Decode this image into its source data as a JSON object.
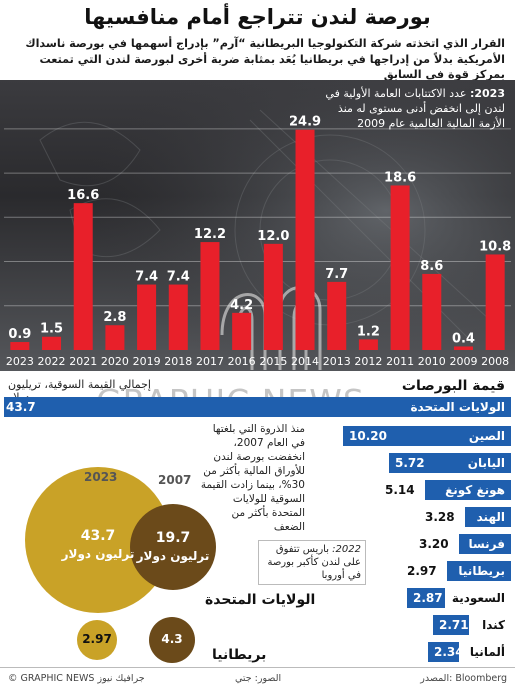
{
  "header": {
    "title": "بورصة لندن تتراجع أمام منافسيها",
    "subtitle": "القرار الذي اتخذته شركة التكنولوجيا البريطانية “آرم” بإدراج أسهمها في بورصة ناسداك الأمريكية بدلاً من إدراجها في بريطانيا يُعَد بمثابة ضربة أخرى لبورصة لندن التي تمتعت بمركز قوة في السابق"
  },
  "ipo_annotation": {
    "year": "2023:",
    "text": "عدد الاكتتابات العامة الأولية في لندن إلى انخفض أدنى مستوى له منذ الأزمة المالية العالمية عام 2009"
  },
  "chart_data": [
    {
      "type": "bar",
      "categories": [
        "2008",
        "2009",
        "2010",
        "2011",
        "2012",
        "2013",
        "2014",
        "2015",
        "2016",
        "2017",
        "2018",
        "2019",
        "2020",
        "2021",
        "2022",
        "2023"
      ],
      "values": [
        10.8,
        0.4,
        8.6,
        18.6,
        1.2,
        7.7,
        24.9,
        12.0,
        4.2,
        12.2,
        7.4,
        7.4,
        2.8,
        16.6,
        1.5,
        0.9
      ],
      "value_labels": [
        "10.8",
        "0.4",
        "8.6",
        "18.6",
        "1.2",
        "7.7",
        "24.9",
        "12.0",
        "4.2",
        "12.2",
        "7.4",
        "7.4",
        "2.8",
        "16.6",
        "1.5",
        "0.9"
      ],
      "ylim": [
        0,
        26
      ],
      "color": "#e8202a",
      "x_direction": "right-to-left"
    },
    {
      "type": "bar",
      "orientation": "horizontal",
      "title": "قيمة البورصات",
      "subtitle": "إجمالي القيمة السوقية، تريليون دولار",
      "categories": [
        "الولايات المتحدة",
        "الصين",
        "اليابان",
        "هونغ كونغ",
        "الهند",
        "فرنسا",
        "بريطانيا",
        "السعودية",
        "كندا",
        "ألمانيا"
      ],
      "values": [
        43.7,
        10.2,
        5.72,
        5.14,
        3.28,
        3.2,
        2.97,
        2.87,
        2.71,
        2.34
      ],
      "value_labels": [
        "43.7",
        "10.20",
        "5.72",
        "5.14",
        "3.28",
        "3.20",
        "2.97",
        "2.87",
        "2.71",
        "2.34"
      ],
      "xlim": [
        0,
        43.7
      ],
      "color": "#1f5fae"
    }
  ],
  "notes": {
    "peak_note": "منذ الذروة التي بلغتها في العام 2007، انخفضت بورصة لندن للأوراق المالية بأكثر من 30%، بينما زادت القيمة السوقية للولايات المتحدة بأكثر من الضعف",
    "paris_year": "2022:",
    "paris_note": "باريس تتفوق على لندن كأكبر بورصة في أوروبا"
  },
  "bubbles": {
    "year_2023": "2023",
    "year_2007": "2007",
    "us_2023_value": "43.7",
    "us_2023_unit": "ترليون دولار",
    "us_2007_value": "19.7",
    "us_2007_unit": "ترليون دولار",
    "uk_2023_value": "2.97",
    "uk_2007_value": "4.3",
    "us_label": "الولايات المتحدة",
    "uk_label": "بريطانيا",
    "color_2023": "#c9a227",
    "color_2007": "#6b4a1a"
  },
  "watermark": "GRAPHIC NEWS",
  "footer": {
    "source": "المصدر: Bloomberg",
    "photo": "الصور: جتي",
    "credit": "© GRAPHIC NEWS جرافيك نيوز"
  }
}
